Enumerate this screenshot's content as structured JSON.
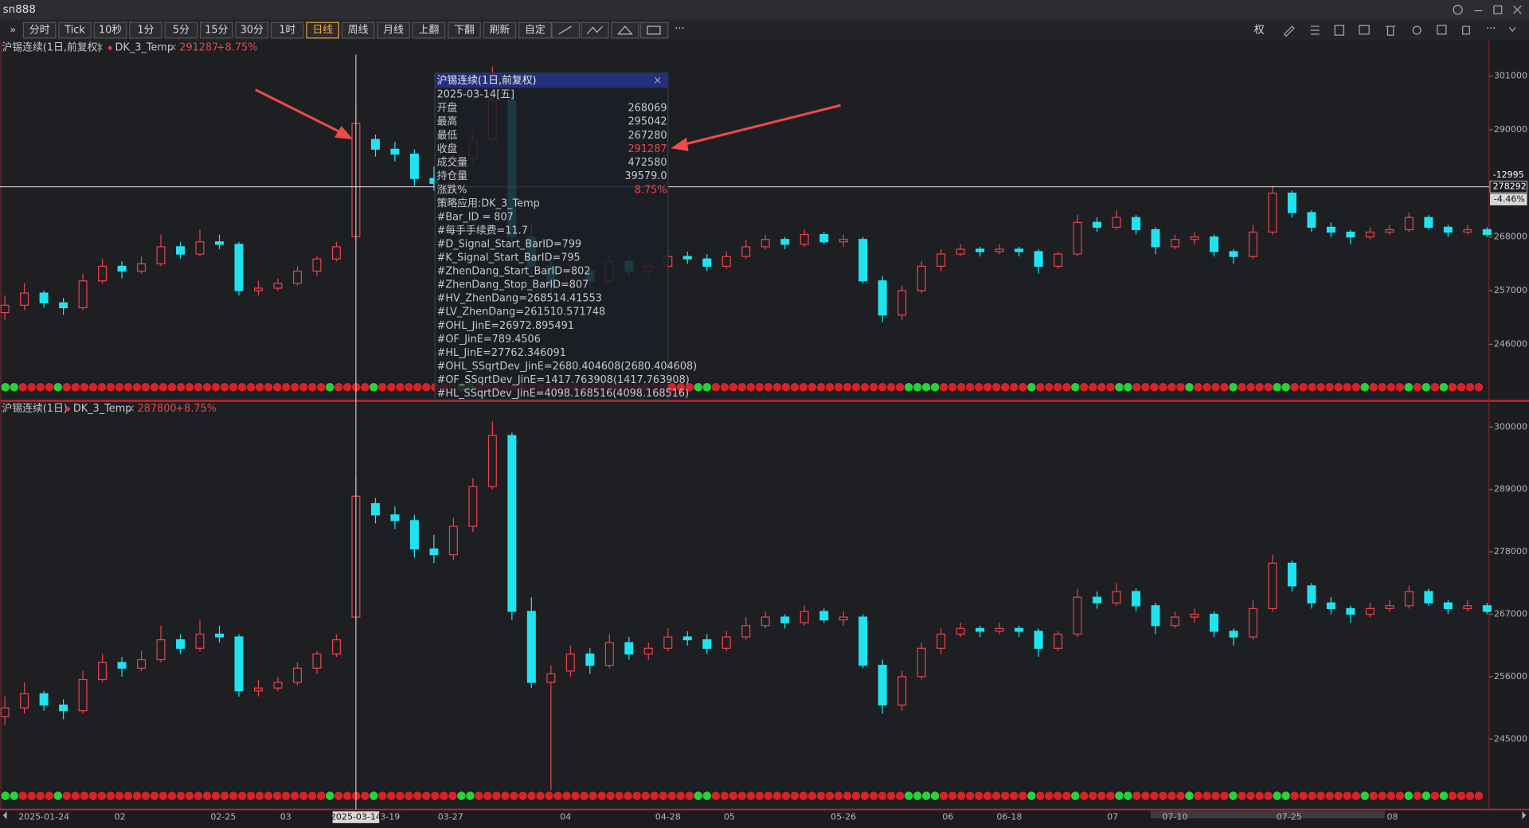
{
  "window": {
    "title": "sn888"
  },
  "toolbar": {
    "buttons": [
      "分时",
      "Tick",
      "10秒",
      "1分",
      "5分",
      "15分",
      "30分",
      "1时",
      "日线",
      "周线",
      "月线",
      "上翻",
      "下翻",
      "刷新",
      "自定"
    ],
    "active": "日线",
    "more": "···",
    "right_label": "权"
  },
  "top_panel": {
    "legend": "沪锡连续(1日,前复权)",
    "indicator": "DK_3_Temp",
    "last": "291287",
    "change": "+8.75%",
    "ylim": [
      235600,
      305400
    ],
    "yticks": [
      301000,
      290000,
      268000,
      257000,
      246000
    ],
    "crosshair": {
      "price": 278292,
      "diff": "-12995",
      "pct": "-4.46%"
    },
    "signals": "ggrrrrgrrrrrrrrrrrrrrrrrrrrrrrrrrrrrrgrrrrgrrrrrrrrrggrrrrrrrrrrrrrrrrrrrrrrrrrggrrrrrrrrrrrrrrrrrrrrrrggggrrrrrrrrrrgrrrrgrrrrggrrrrrrgrrrrgrrrrggrrrrrrrrgrrrrgrgrgrrrr",
    "candles": [
      [
        252500,
        256000,
        251000,
        254000
      ],
      [
        254000,
        258500,
        253000,
        256500
      ],
      [
        256500,
        257000,
        253500,
        254500
      ],
      [
        254500,
        255500,
        252000,
        253500
      ],
      [
        253500,
        260500,
        253000,
        259000
      ],
      [
        259000,
        263500,
        258500,
        262000
      ],
      [
        262000,
        263000,
        259500,
        261000
      ],
      [
        261000,
        264000,
        260500,
        262500
      ],
      [
        262500,
        268500,
        262000,
        266000
      ],
      [
        266000,
        267000,
        263500,
        264500
      ],
      [
        264500,
        269500,
        264000,
        267000
      ],
      [
        267000,
        268500,
        265500,
        266500
      ],
      [
        266500,
        267000,
        256000,
        257000
      ],
      [
        257000,
        259000,
        256000,
        257500
      ],
      [
        257500,
        259500,
        257000,
        258500
      ],
      [
        258500,
        262000,
        258000,
        261000
      ],
      [
        261000,
        264000,
        260000,
        263500
      ],
      [
        263500,
        267000,
        263000,
        266000
      ],
      [
        268069,
        295042,
        267280,
        291287
      ],
      [
        288000,
        289000,
        284500,
        286000
      ],
      [
        286000,
        287500,
        283500,
        285000
      ],
      [
        285000,
        286000,
        278500,
        280000
      ],
      [
        280000,
        282500,
        277500,
        279000
      ],
      [
        279000,
        285500,
        278000,
        284000
      ],
      [
        284000,
        290000,
        283000,
        288000
      ],
      [
        288000,
        303000,
        287500,
        296000
      ],
      [
        296000,
        297000,
        266000,
        268000
      ],
      [
        268000,
        271000,
        260000,
        262000
      ],
      [
        262000,
        264000,
        256000,
        258000
      ],
      [
        258000,
        262500,
        257000,
        261000
      ],
      [
        261000,
        262000,
        257500,
        259000
      ],
      [
        259000,
        264500,
        258500,
        263000
      ],
      [
        263000,
        264000,
        260000,
        261000
      ],
      [
        261000,
        263000,
        260000,
        262000
      ],
      [
        262000,
        265500,
        261500,
        264000
      ],
      [
        264000,
        265000,
        262500,
        263500
      ],
      [
        263500,
        264500,
        261000,
        262000
      ],
      [
        262000,
        265000,
        261500,
        264000
      ],
      [
        264000,
        267500,
        263500,
        266000
      ],
      [
        266000,
        268500,
        265500,
        267500
      ],
      [
        267500,
        268000,
        265500,
        266500
      ],
      [
        266500,
        269500,
        266000,
        268500
      ],
      [
        268500,
        269000,
        266500,
        267000
      ],
      [
        267000,
        268500,
        266000,
        267500
      ],
      [
        267500,
        268000,
        258500,
        259000
      ],
      [
        259000,
        260000,
        250500,
        252000
      ],
      [
        252000,
        258000,
        251000,
        257000
      ],
      [
        257000,
        263000,
        256500,
        262000
      ],
      [
        262000,
        265500,
        261000,
        264500
      ],
      [
        264500,
        266500,
        264000,
        265500
      ],
      [
        265500,
        266000,
        264000,
        265000
      ],
      [
        265000,
        266500,
        264500,
        265500
      ],
      [
        265500,
        266000,
        264000,
        265000
      ],
      [
        265000,
        265500,
        260500,
        262000
      ],
      [
        262000,
        265000,
        261500,
        264500
      ],
      [
        264500,
        272500,
        264000,
        271000
      ],
      [
        271000,
        272000,
        269000,
        270000
      ],
      [
        270000,
        273500,
        269500,
        272000
      ],
      [
        272000,
        272500,
        268500,
        269500
      ],
      [
        269500,
        270000,
        264500,
        266000
      ],
      [
        266000,
        268500,
        265500,
        267500
      ],
      [
        267500,
        269000,
        266500,
        268000
      ],
      [
        268000,
        268500,
        264000,
        265000
      ],
      [
        265000,
        265500,
        262500,
        264000
      ],
      [
        264000,
        270500,
        263500,
        269000
      ],
      [
        269000,
        278500,
        268500,
        277000
      ],
      [
        277000,
        277500,
        272000,
        273000
      ],
      [
        273000,
        273500,
        269000,
        270000
      ],
      [
        270000,
        271000,
        268000,
        269000
      ],
      [
        269000,
        269500,
        266500,
        268000
      ],
      [
        268000,
        270000,
        267500,
        269000
      ],
      [
        269000,
        270500,
        268500,
        269500
      ],
      [
        269500,
        273000,
        269000,
        272000
      ],
      [
        272000,
        272500,
        269500,
        270000
      ],
      [
        270000,
        270500,
        268000,
        269000
      ],
      [
        269000,
        270500,
        268500,
        269500
      ],
      [
        269500,
        270000,
        268000,
        268500
      ]
    ]
  },
  "bottom_panel": {
    "legend": "沪锡连续(1日)",
    "indicator": "DK_3_Temp",
    "last": "287800",
    "change": "+8.75%",
    "ylim": [
      232600,
      302200
    ],
    "yticks": [
      300000,
      289000,
      278000,
      267000,
      256000,
      245000
    ],
    "signals": "ggrrrrgrrrrrrrrrrrrrrrrrrrrrrrrrrrrrrgrrrrgrrrrrrrrrggrrrrrrrrrrrrrrrrrrrrrrrrrggrrrrrrrrrrrrrrrrrrrrrrggggrrrrrrrrrrgrrrrgrrrrggrrrrrrgrrrrgrrrrggrrrrrrrrgrrrrgrgrgrrrr",
    "candles": [
      [
        249000,
        252500,
        247500,
        250500
      ],
      [
        250500,
        255000,
        249500,
        253000
      ],
      [
        253000,
        253500,
        250000,
        251000
      ],
      [
        251000,
        252000,
        248500,
        250000
      ],
      [
        250000,
        257000,
        249500,
        255500
      ],
      [
        255500,
        260000,
        255000,
        258500
      ],
      [
        258500,
        259500,
        256000,
        257500
      ],
      [
        257500,
        260500,
        257000,
        259000
      ],
      [
        259000,
        265000,
        258500,
        262500
      ],
      [
        262500,
        263500,
        260000,
        261000
      ],
      [
        261000,
        266000,
        260500,
        263500
      ],
      [
        263500,
        265000,
        262000,
        263000
      ],
      [
        263000,
        263500,
        252500,
        253500
      ],
      [
        253500,
        255500,
        252500,
        254000
      ],
      [
        254000,
        256000,
        253500,
        255000
      ],
      [
        255000,
        258500,
        254500,
        257500
      ],
      [
        257500,
        260500,
        256500,
        260000
      ],
      [
        260000,
        263500,
        259500,
        262500
      ],
      [
        266500,
        291500,
        265700,
        287800
      ],
      [
        286500,
        287500,
        283000,
        284500
      ],
      [
        284500,
        286000,
        282000,
        283500
      ],
      [
        283500,
        284500,
        277000,
        278500
      ],
      [
        278500,
        281000,
        276000,
        277500
      ],
      [
        277500,
        284000,
        276500,
        282500
      ],
      [
        282500,
        291000,
        281500,
        289500
      ],
      [
        289500,
        301000,
        289000,
        298500
      ],
      [
        298500,
        299000,
        266000,
        267500
      ],
      [
        267500,
        270000,
        254000,
        255000
      ],
      [
        255000,
        258000,
        236000,
        256500
      ],
      [
        257000,
        261500,
        256000,
        260000
      ],
      [
        260000,
        261000,
        256500,
        258000
      ],
      [
        258000,
        263500,
        257500,
        262000
      ],
      [
        262000,
        263000,
        259000,
        260000
      ],
      [
        260000,
        262000,
        259000,
        261000
      ],
      [
        261000,
        264500,
        260500,
        263000
      ],
      [
        263000,
        264000,
        261500,
        262500
      ],
      [
        262500,
        263500,
        260000,
        261000
      ],
      [
        261000,
        264000,
        260500,
        263000
      ],
      [
        263000,
        266500,
        262500,
        265000
      ],
      [
        265000,
        267500,
        264500,
        266500
      ],
      [
        266500,
        267000,
        264500,
        265500
      ],
      [
        265500,
        268500,
        265000,
        267500
      ],
      [
        267500,
        268000,
        265500,
        266000
      ],
      [
        266000,
        267500,
        265000,
        266500
      ],
      [
        266500,
        267000,
        257500,
        258000
      ],
      [
        258000,
        259000,
        249500,
        251000
      ],
      [
        251000,
        257000,
        250000,
        256000
      ],
      [
        256000,
        262000,
        255500,
        261000
      ],
      [
        261000,
        264500,
        260000,
        263500
      ],
      [
        263500,
        265500,
        263000,
        264500
      ],
      [
        264500,
        265000,
        263000,
        264000
      ],
      [
        264000,
        265500,
        263500,
        264500
      ],
      [
        264500,
        265000,
        263000,
        264000
      ],
      [
        264000,
        264500,
        259500,
        261000
      ],
      [
        261000,
        264000,
        260500,
        263500
      ],
      [
        263500,
        271500,
        263000,
        270000
      ],
      [
        270000,
        271000,
        268000,
        269000
      ],
      [
        269000,
        272500,
        268500,
        271000
      ],
      [
        271000,
        271500,
        267500,
        268500
      ],
      [
        268500,
        269000,
        263500,
        265000
      ],
      [
        265000,
        267500,
        264500,
        266500
      ],
      [
        266500,
        268000,
        265500,
        267000
      ],
      [
        267000,
        267500,
        263000,
        264000
      ],
      [
        264000,
        264500,
        261500,
        263000
      ],
      [
        263000,
        269500,
        262500,
        268000
      ],
      [
        268000,
        277500,
        267500,
        276000
      ],
      [
        276000,
        276500,
        271000,
        272000
      ],
      [
        272000,
        272500,
        268000,
        269000
      ],
      [
        269000,
        270000,
        267000,
        268000
      ],
      [
        268000,
        268500,
        265500,
        267000
      ],
      [
        267000,
        269000,
        266500,
        268000
      ],
      [
        268000,
        269500,
        267500,
        268500
      ],
      [
        268500,
        272000,
        268000,
        271000
      ],
      [
        271000,
        271500,
        268500,
        269000
      ],
      [
        269000,
        269500,
        267000,
        268000
      ],
      [
        268000,
        269500,
        267500,
        268500
      ],
      [
        268500,
        269000,
        267000,
        267500
      ]
    ]
  },
  "x_axis": {
    "labels": [
      "2025-01-24",
      "02",
      "02-25",
      "03",
      "3-19",
      "03-27",
      "04",
      "04-28",
      "05",
      "05-26",
      "06",
      "06-18",
      "07",
      "07-10",
      "07-25",
      "08"
    ],
    "crosshair_date": "2025-03-14"
  },
  "tooltip": {
    "title": "沪锡连续(1日,前复权)",
    "date": "2025-03-14[五]",
    "rows": [
      [
        "开盘",
        "268069"
      ],
      [
        "最高",
        "295042"
      ],
      [
        "最低",
        "267280"
      ],
      [
        "收盘",
        "291287"
      ],
      [
        "成交量",
        "472580"
      ],
      [
        "持仓量",
        "39579.0"
      ],
      [
        "涨跌%",
        "8.75%"
      ]
    ],
    "lines": [
      "策略应用:DK_3_Temp",
      "#Bar_ID = 807",
      "#每手手续费=11.7",
      "#D_Signal_Start_BarID=799",
      "#K_Signal_Start_BarID=795",
      "#ZhenDang_Start_BarID=802",
      "#ZhenDang_Stop_BarID=807",
      "#HV_ZhenDang=268514.41553",
      "#LV_ZhenDang=261510.571748",
      "#OHL_JinE=26972.895491",
      "#OF_JinE=789.4506",
      "#HL_JinE=27762.346091",
      "#OHL_SSqrtDev_JinE=2680.404608(2680.404608)",
      "#OF_SSqrtDev_JinE=1417.763908(1417.763908)",
      "#HL_SSqrtDev_JinE=4098.168516(4098.168516)"
    ]
  }
}
